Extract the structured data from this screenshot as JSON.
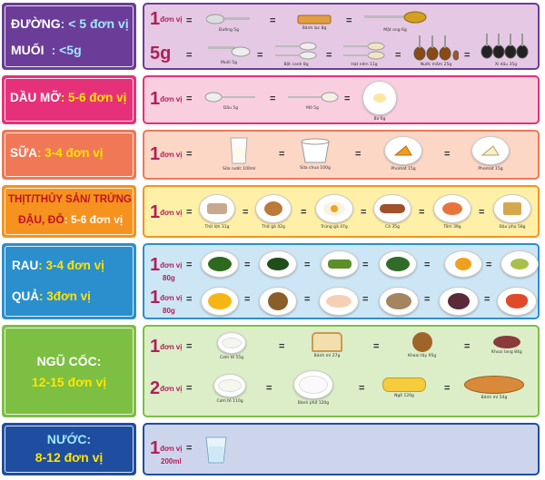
{
  "rows": {
    "duong_muoi": {
      "label_line1_a": "ĐƯỜNG",
      "label_line1_b": ": < 5 đơn vị",
      "label_line2_a": "MUỐI",
      "label_line2_b": ": <5g",
      "unit1": "1",
      "unit1_suffix": "đơn vị",
      "unit2": "5g",
      "items_top": [
        "Đường 5g",
        "Bánh lạc 8g",
        "Mật ong 6g"
      ],
      "items_bottom": [
        "Muối 5g",
        "Bột canh 8g",
        "Hạt nêm 11g",
        "Nước mắm 25g",
        "Xì dầu 35g"
      ]
    },
    "dau_mo": {
      "label_a": "DẦU MỠ",
      "label_b": ": 5-6 đơn vị",
      "unit": "1",
      "unit_suffix": "đơn vị",
      "items": [
        "Dầu 5g",
        "Mỡ 5g",
        "Bơ 6g"
      ]
    },
    "sua": {
      "label_a": "SỮA",
      "label_b": ": 3-4 đơn vị",
      "unit": "1",
      "unit_suffix": "đơn vị",
      "items": [
        "Sữa nước 100ml",
        "Sữa chua 100g",
        "Phomat 15g",
        "Phomat 15g"
      ]
    },
    "thit": {
      "label_line1": "THỊT/THỦY SẢN/ TRỨNG",
      "label_line2_a": "ĐẬU, ĐỖ",
      "label_line2_b": ": 5-6 đơn vị",
      "unit": "1",
      "unit_suffix": "đơn vị",
      "items": [
        "Thịt lợn 31g",
        "Thịt gà 42g",
        "Trứng gà 47g",
        "Cá 35g",
        "Tôm 39g",
        "Đậu phụ 58g"
      ]
    },
    "rau_qua": {
      "label1_a": "RAU",
      "label1_b": ": 3-4 đơn vị",
      "label2_a": "QUẢ",
      "label2_b": ": 3đơn vị",
      "unit1": "1",
      "unit1_suffix": "đơn vị",
      "unit1_sub": "80g",
      "unit2": "1",
      "unit2_suffix": "đơn vị",
      "unit2_sub": "80g"
    },
    "ngu_coc": {
      "label1": "NGŨ CỐC:",
      "label2": "12-15 đơn vị",
      "unit1": "1",
      "unit1_suffix": "đơn vị",
      "unit2": "2",
      "unit2_suffix": "đơn vị",
      "items_top": [
        "Cơm tẻ 55g",
        "Bánh mì 27g",
        "Khoai tây 95g",
        "Khoai lang 84g"
      ],
      "items_bottom": [
        "Cơm tẻ 110g",
        "Bánh phở 120g",
        "Ngô 120g",
        "Bánh mì 54g"
      ]
    },
    "nuoc": {
      "label1": "NƯỚC:",
      "label2": "8-12 đơn vị",
      "unit": "1",
      "unit_suffix": "đơn vị",
      "unit_sub": "200ml"
    }
  },
  "colors": {
    "purple": "#6b3d98",
    "pink": "#e6317a",
    "salmon": "#f07857",
    "orange": "#f6921e",
    "blue": "#2b8fce",
    "green": "#7cbf42",
    "navy": "#1f4ea0"
  }
}
